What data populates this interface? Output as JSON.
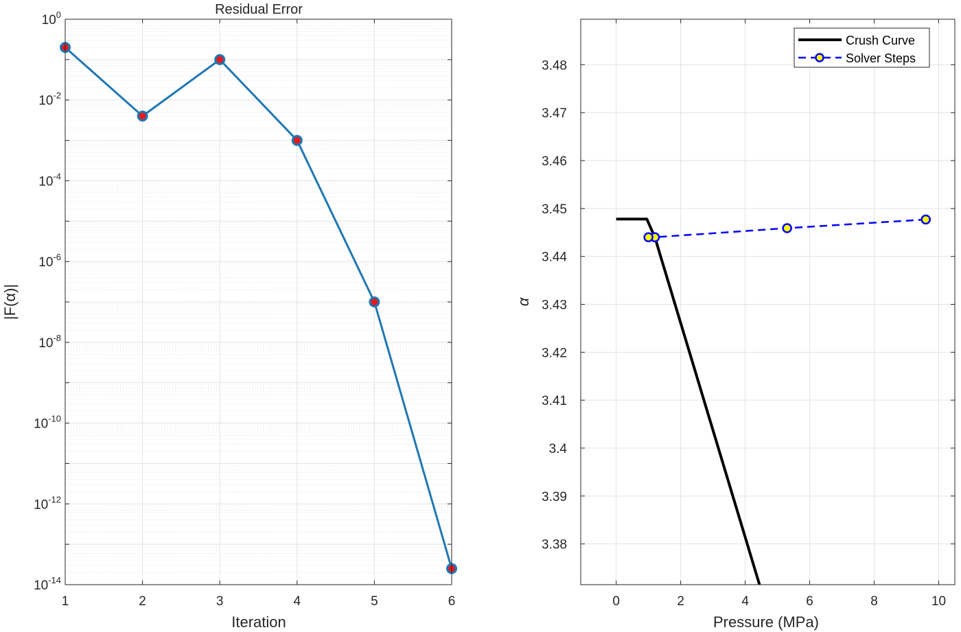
{
  "chart_data": [
    {
      "type": "line",
      "title": "Residual Error",
      "xlabel": "Iteration",
      "ylabel": "|F(α)|",
      "xlim": [
        1,
        6
      ],
      "ylim_log10": [
        -14,
        0
      ],
      "yscale": "log",
      "grid": true,
      "minor_grid": true,
      "x_ticks": [
        1,
        2,
        3,
        4,
        5,
        6
      ],
      "y_ticks": [
        {
          "exp": 0,
          "base": "10",
          "sup": "0"
        },
        {
          "exp": -2,
          "base": "10",
          "sup": "-2"
        },
        {
          "exp": -4,
          "base": "10",
          "sup": "-4"
        },
        {
          "exp": -6,
          "base": "10",
          "sup": "-6"
        },
        {
          "exp": -8,
          "base": "10",
          "sup": "-8"
        },
        {
          "exp": -10,
          "base": "10",
          "sup": "-10"
        },
        {
          "exp": -12,
          "base": "10",
          "sup": "-12"
        },
        {
          "exp": -14,
          "base": "10",
          "sup": "-14"
        }
      ],
      "series": [
        {
          "x": [
            1,
            2,
            3,
            4,
            5,
            6
          ],
          "y": [
            0.2,
            0.004,
            0.1,
            0.001,
            1e-07,
            2.5e-14
          ],
          "color": "#1f77b4",
          "marker_fill": "#e41a1c"
        }
      ]
    },
    {
      "type": "line",
      "title": "",
      "xlabel": "Pressure (MPa)",
      "ylabel": "α",
      "xlim": [
        -1.1,
        10.5
      ],
      "ylim": [
        3.3715,
        3.4895
      ],
      "grid": true,
      "legend_position": "top-right",
      "x_ticks": [
        "0",
        "2",
        "4",
        "6",
        "8",
        "10"
      ],
      "y_ticks": [
        "3.38",
        "3.39",
        "3.4",
        "3.41",
        "3.42",
        "3.43",
        "3.44",
        "3.45",
        "3.46",
        "3.47",
        "3.48"
      ],
      "series": [
        {
          "name": "Crush Curve",
          "color": "#000000",
          "style": "solid",
          "x": [
            0,
            0.95,
            1.1,
            1.2,
            1.4,
            4.6
          ],
          "y": [
            3.4478,
            3.4478,
            3.4455,
            3.444,
            3.4395,
            3.368
          ]
        },
        {
          "name": "Solver Steps",
          "color": "#0000ff",
          "style": "dashed",
          "marker_fill": "#ffff00",
          "x": [
            9.6,
            5.3,
            1.2,
            1.0
          ],
          "y": [
            3.4477,
            3.4459,
            3.444,
            3.444
          ]
        }
      ]
    }
  ]
}
